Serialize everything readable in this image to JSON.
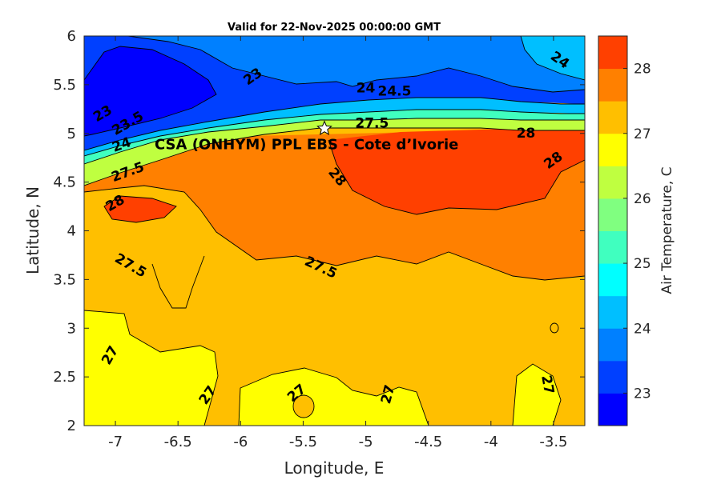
{
  "chart_data": {
    "type": "heatmap",
    "subtype": "filled-contour",
    "title": "Valid for 22-Nov-2025 00:00:00 GMT",
    "xlabel": "Longitude, E",
    "ylabel": "Latitude, N",
    "colorbar_label": "Air Temperature, C",
    "xlim": [
      -7.25,
      -3.25
    ],
    "ylim": [
      2,
      6
    ],
    "x_ticks": [
      -7,
      -6.5,
      -6,
      -5.5,
      -5,
      -4.5,
      -4,
      -3.5
    ],
    "y_ticks": [
      2,
      2.5,
      3,
      3.5,
      4,
      4.5,
      5,
      5.5,
      6
    ],
    "colorbar_range": [
      22.5,
      28.5
    ],
    "colorbar_ticks": [
      23,
      24,
      25,
      26,
      27,
      28
    ],
    "levels": [
      22.5,
      23,
      23.5,
      24,
      24.5,
      25,
      25.5,
      26,
      26.5,
      27,
      27.5,
      28,
      28.5
    ],
    "level_colors": [
      "#0000ff",
      "#0040ff",
      "#0080ff",
      "#00bfff",
      "#00ffff",
      "#40ffbf",
      "#80ff80",
      "#bfff40",
      "#ffff00",
      "#ffbf00",
      "#ff8000",
      "#ff4000"
    ],
    "contour_labels": [
      {
        "text": "23",
        "lon": -5.9,
        "lat": 5.58
      },
      {
        "text": "23",
        "lon": -7.1,
        "lat": 5.2
      },
      {
        "text": "23.5",
        "lon": -6.9,
        "lat": 5.1
      },
      {
        "text": "24",
        "lon": -3.45,
        "lat": 5.75
      },
      {
        "text": "24",
        "lon": -5.0,
        "lat": 5.46
      },
      {
        "text": "24.5",
        "lon": -4.77,
        "lat": 5.43
      },
      {
        "text": "24",
        "lon": -6.95,
        "lat": 4.88
      },
      {
        "text": "27.5",
        "lon": -6.9,
        "lat": 4.6
      },
      {
        "text": "27.5",
        "lon": -4.95,
        "lat": 5.1
      },
      {
        "text": "28",
        "lon": -3.72,
        "lat": 5.0
      },
      {
        "text": "28",
        "lon": -3.5,
        "lat": 4.72
      },
      {
        "text": "28",
        "lon": -5.23,
        "lat": 4.55
      },
      {
        "text": "28",
        "lon": -7.0,
        "lat": 4.28
      },
      {
        "text": "27.5",
        "lon": -6.88,
        "lat": 3.64
      },
      {
        "text": "27.5",
        "lon": -5.36,
        "lat": 3.62
      },
      {
        "text": "27",
        "lon": -7.04,
        "lat": 2.72
      },
      {
        "text": "27",
        "lon": -6.26,
        "lat": 2.31
      },
      {
        "text": "27",
        "lon": -5.55,
        "lat": 2.33
      },
      {
        "text": "27",
        "lon": -4.82,
        "lat": 2.32
      },
      {
        "text": "27",
        "lon": -3.55,
        "lat": 2.42
      }
    ],
    "station": {
      "name": "CSA (ONHYM) PPL EBS  - Cote d’Ivorie",
      "lon": -5.33,
      "lat": 5.05
    }
  }
}
